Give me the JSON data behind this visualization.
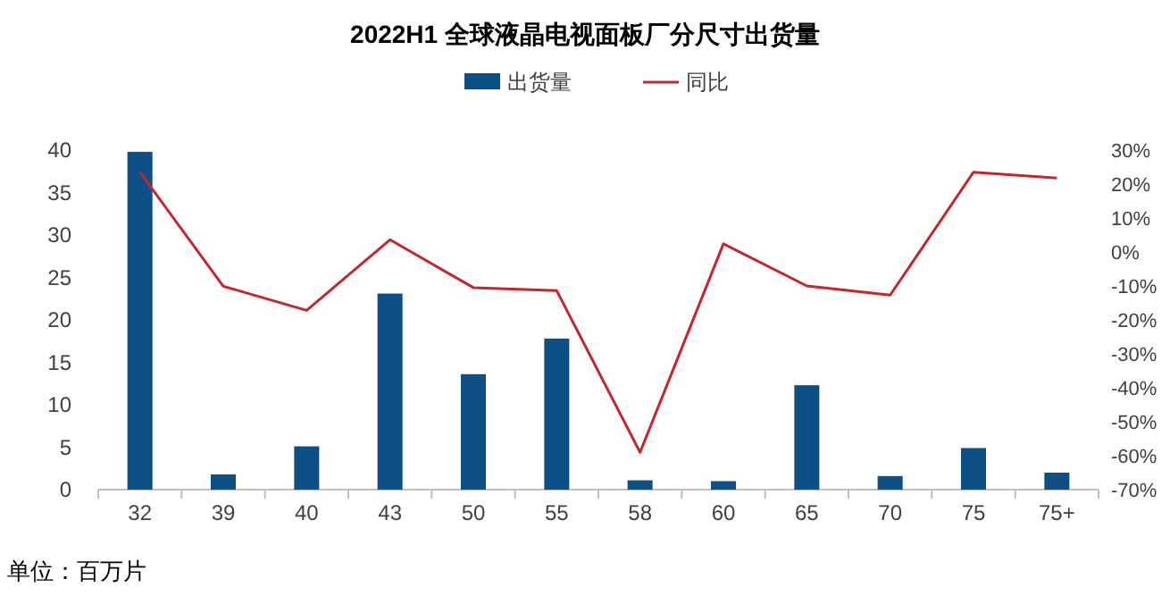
{
  "chart_data": {
    "type": "bar",
    "title": "2022H1 全球液晶电视面板厂分尺寸出货量",
    "categories": [
      "32",
      "39",
      "40",
      "43",
      "50",
      "55",
      "58",
      "60",
      "65",
      "70",
      "75",
      "75+"
    ],
    "series": [
      {
        "name": "出货量",
        "color": "#0e4f86",
        "values": [
          39.8,
          1.8,
          5.1,
          23.1,
          13.6,
          17.8,
          1.1,
          1.0,
          12.3,
          1.6,
          4.9,
          2.0
        ]
      },
      {
        "name": "同比",
        "type": "line",
        "axis": "y2",
        "color": "#c1272d",
        "values": [
          23.5,
          -10.1,
          -17.2,
          3.6,
          -10.5,
          -11.4,
          -59,
          2.4,
          -10,
          -12.7,
          23.5,
          21.8
        ]
      }
    ],
    "ylim": [
      0,
      40
    ],
    "yticks": [
      0,
      5,
      10,
      15,
      20,
      25,
      30,
      35,
      40
    ],
    "y2lim": [
      -70,
      30
    ],
    "y2ticks": [
      {
        "value": 30,
        "label": "30%"
      },
      {
        "value": 20,
        "label": "20%"
      },
      {
        "value": 10,
        "label": "10%"
      },
      {
        "value": 0,
        "label": "0%"
      },
      {
        "value": -10,
        "label": "-10%"
      },
      {
        "value": -20,
        "label": "-20%"
      },
      {
        "value": -30,
        "label": "-30%"
      },
      {
        "value": -40,
        "label": "-40%"
      },
      {
        "value": -50,
        "label": "-50%"
      },
      {
        "value": -60,
        "label": "-60%"
      },
      {
        "value": -70,
        "label": "-70%"
      }
    ],
    "grid": false,
    "legend": "top",
    "marker": "none",
    "line_style": "solid",
    "annotations": [
      "单位：百万片"
    ]
  }
}
